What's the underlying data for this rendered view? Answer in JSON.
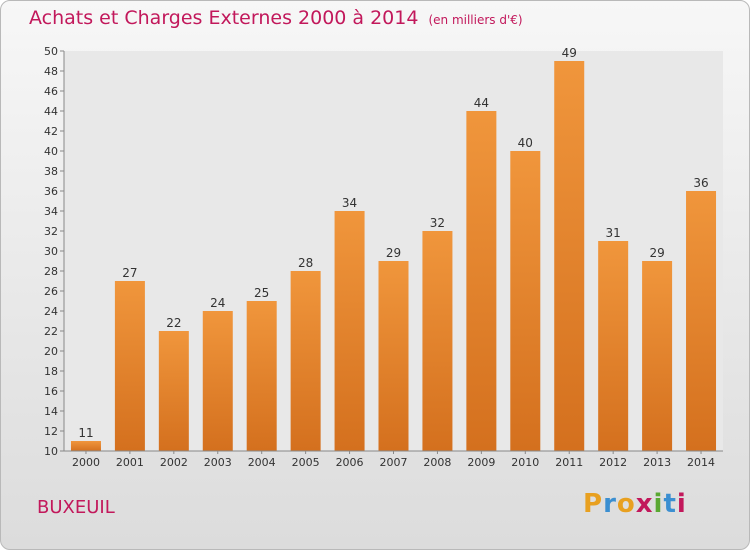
{
  "chart_data": {
    "type": "bar",
    "title": "Achats et Charges Externes 2000 à 2014",
    "subtitle": "(en milliers d'€)",
    "categories": [
      "2000",
      "2001",
      "2002",
      "2003",
      "2004",
      "2005",
      "2006",
      "2007",
      "2008",
      "2009",
      "2010",
      "2011",
      "2012",
      "2013",
      "2014"
    ],
    "values": [
      11,
      27,
      22,
      24,
      25,
      28,
      34,
      29,
      32,
      44,
      40,
      49,
      31,
      29,
      36
    ],
    "xlabel": "",
    "ylabel": "",
    "ylim": [
      10,
      50
    ],
    "ytick_step": 2,
    "grid": false,
    "bar_color": "#f0963c",
    "bar_color_dark": "#d4701e"
  },
  "footer": {
    "place": "BUXEUIL",
    "logo": "Proxiti",
    "logo_colors": [
      "#e8a020",
      "#3b8fd1",
      "#e8a020",
      "#c2185b",
      "#5aa832",
      "#3b8fd1",
      "#c2185b"
    ]
  }
}
